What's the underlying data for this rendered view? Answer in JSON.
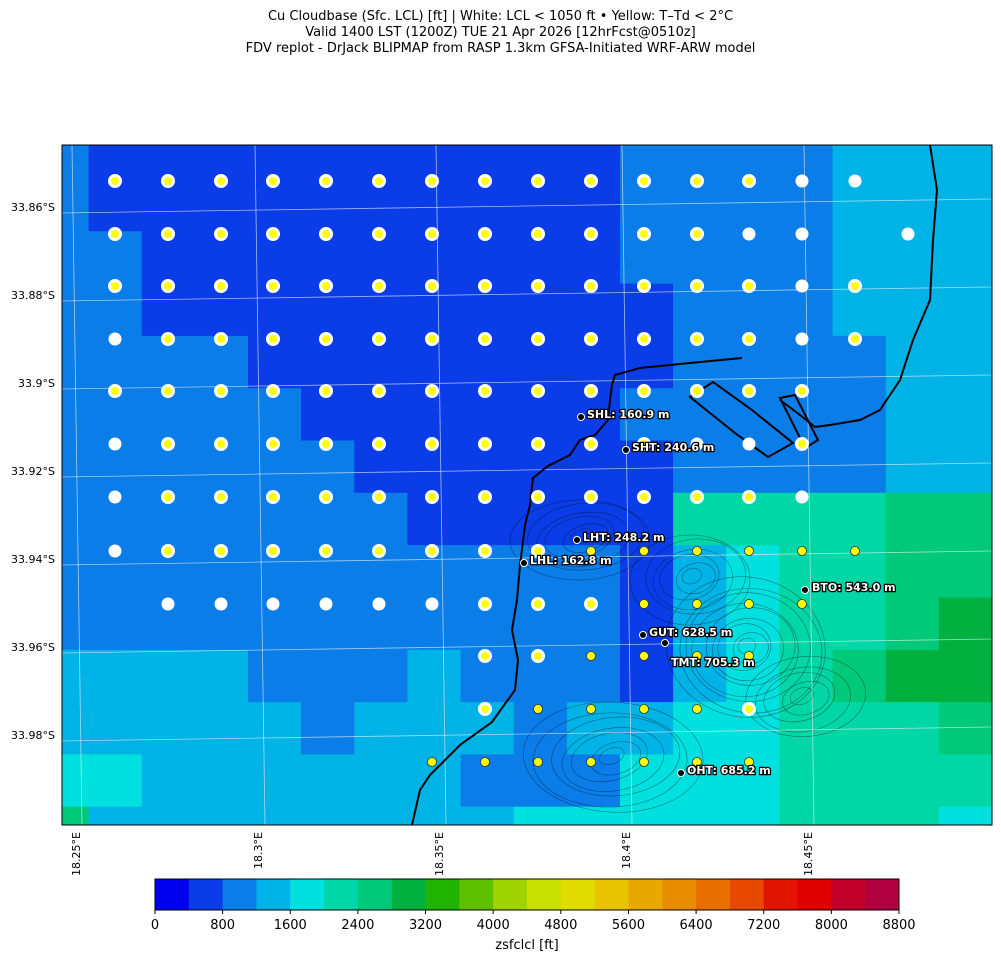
{
  "title": {
    "line1": "Cu Cloudbase (Sfc. LCL) [ft]  |  White: LCL < 1050 ft • Yellow: T–Td < 2°C",
    "line2": "Valid 1400 LST (1200Z) TUE 21 Apr 2026 [12hrFcst@0510z]",
    "line3": "FDV replot - DrJack BLIPMAP from RASP 1.3km GFSA-Initiated WRF-ARW model"
  },
  "lat_labels": [
    "33.86°S",
    "33.88°S",
    "33.9°S",
    "33.92°S",
    "33.94°S",
    "33.96°S",
    "33.98°S"
  ],
  "lon_labels": [
    "18.25°E",
    "18.3°E",
    "18.35°E",
    "18.4°E",
    "18.45°E"
  ],
  "colorbar": {
    "label": "zsfclcl [ft]",
    "ticks": [
      "0",
      "800",
      "1600",
      "2400",
      "3200",
      "4000",
      "4800",
      "5600",
      "6400",
      "7200",
      "8000",
      "8800"
    ],
    "min": 0,
    "max": 8800,
    "step": 400,
    "colors": [
      "#0000ee",
      "#0a3de8",
      "#0a7de8",
      "#00b3e6",
      "#00e0df",
      "#00d6a6",
      "#00c97a",
      "#00b140",
      "#1fb300",
      "#5fc000",
      "#9fd400",
      "#c8e000",
      "#e0dc00",
      "#e8c400",
      "#e8a800",
      "#e88c00",
      "#e86e00",
      "#e84800",
      "#e01400",
      "#e00000",
      "#c0002a",
      "#b00040"
    ]
  },
  "sites": [
    {
      "label": "SHL: 160.9 m"
    },
    {
      "label": "SHT: 240.6 m"
    },
    {
      "label": "LHT: 248.2 m"
    },
    {
      "label": "LHL: 162.8 m"
    },
    {
      "label": "BTO: 543.0 m"
    },
    {
      "label": "GUT: 628.5 m"
    },
    {
      "label": "TMT: 705.3 m"
    },
    {
      "label": "OHT: 685.2 m"
    }
  ],
  "marker_legend": {
    "white": "LCL < 1050 ft",
    "yellow": "T–Td < 2°C"
  },
  "colors": {
    "frame": "#000000",
    "coast": "#000000",
    "grid": "#d8e4f0",
    "white_marker": "#ffffff",
    "yellow_marker": "#ffff00"
  }
}
